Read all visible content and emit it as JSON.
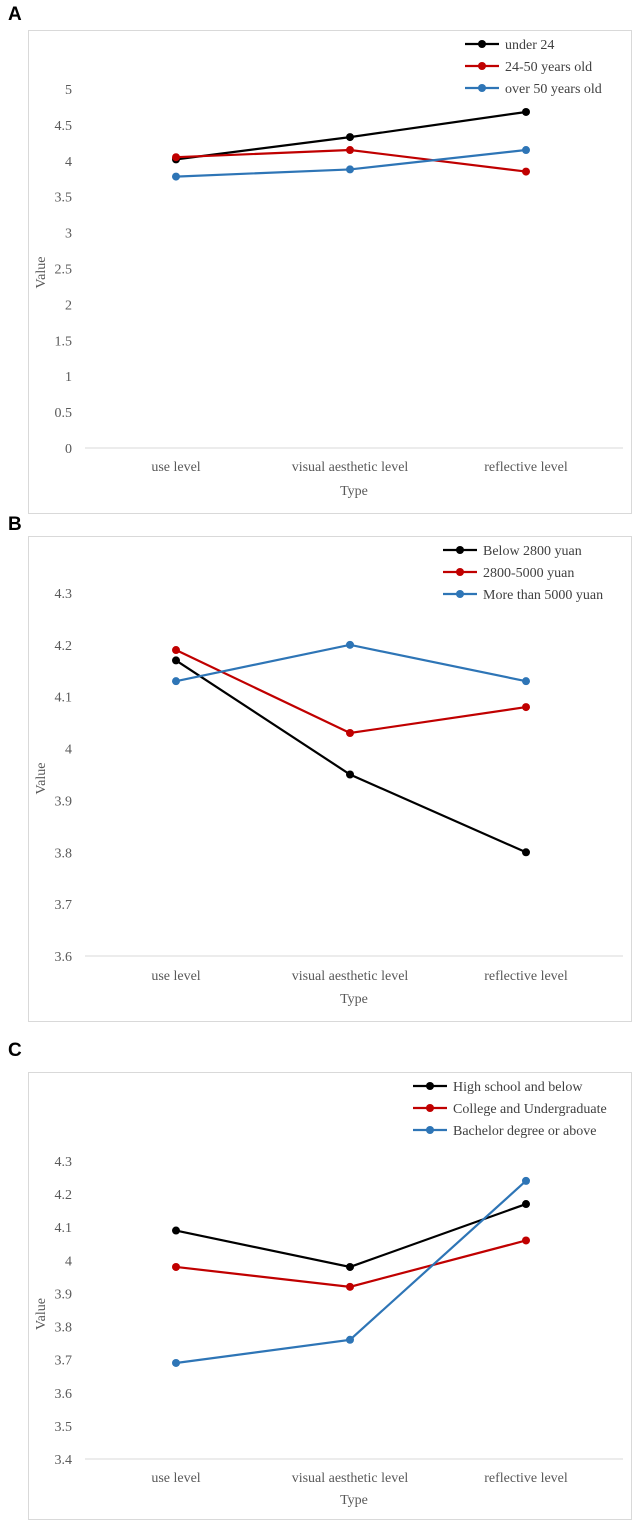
{
  "chart_data": [
    {
      "panel": "A",
      "type": "line",
      "title": "",
      "xlabel": "Type",
      "ylabel": "Value",
      "categories": [
        "use level",
        "visual aesthetic level",
        "reflective level"
      ],
      "ylim": [
        0,
        5
      ],
      "yticks": [
        "0",
        "0.5",
        "1",
        "1.5",
        "2",
        "2.5",
        "3",
        "3.5",
        "4",
        "4.5",
        "5"
      ],
      "legend_position": "top-right",
      "grid": false,
      "series": [
        {
          "name": "under 24",
          "color": "#000000",
          "values": [
            4.02,
            4.33,
            4.68
          ]
        },
        {
          "name": "24-50 years old",
          "color": "#c00000",
          "values": [
            4.05,
            4.15,
            3.85
          ]
        },
        {
          "name": "over 50 years old",
          "color": "#2e75b6",
          "values": [
            3.78,
            3.88,
            4.15
          ]
        }
      ]
    },
    {
      "panel": "B",
      "type": "line",
      "title": "",
      "xlabel": "Type",
      "ylabel": "Value",
      "categories": [
        "use level",
        "visual aesthetic level",
        "reflective level"
      ],
      "ylim": [
        3.6,
        4.3
      ],
      "yticks": [
        "3.6",
        "3.7",
        "3.8",
        "3.9",
        "4",
        "4.1",
        "4.2",
        "4.3"
      ],
      "legend_position": "top-right",
      "grid": false,
      "series": [
        {
          "name": "Below 2800 yuan",
          "color": "#000000",
          "values": [
            4.17,
            3.95,
            3.8
          ]
        },
        {
          "name": "2800-5000 yuan",
          "color": "#c00000",
          "values": [
            4.19,
            4.03,
            4.08
          ]
        },
        {
          "name": "More than 5000 yuan",
          "color": "#2e75b6",
          "values": [
            4.13,
            4.2,
            4.13
          ]
        }
      ]
    },
    {
      "panel": "C",
      "type": "line",
      "title": "",
      "xlabel": "Type",
      "ylabel": "Value",
      "categories": [
        "use level",
        "visual aesthetic level",
        "reflective level"
      ],
      "ylim": [
        3.4,
        4.3
      ],
      "yticks": [
        "3.4",
        "3.5",
        "3.6",
        "3.7",
        "3.8",
        "3.9",
        "4",
        "4.1",
        "4.2",
        "4.3"
      ],
      "legend_position": "top-right",
      "grid": false,
      "series": [
        {
          "name": "High school and below",
          "color": "#000000",
          "values": [
            4.09,
            3.98,
            4.17
          ]
        },
        {
          "name": "College and Undergraduate",
          "color": "#c00000",
          "values": [
            3.98,
            3.92,
            4.06
          ]
        },
        {
          "name": "Bachelor degree or above",
          "color": "#2e75b6",
          "values": [
            3.69,
            3.76,
            4.24
          ]
        }
      ]
    }
  ]
}
